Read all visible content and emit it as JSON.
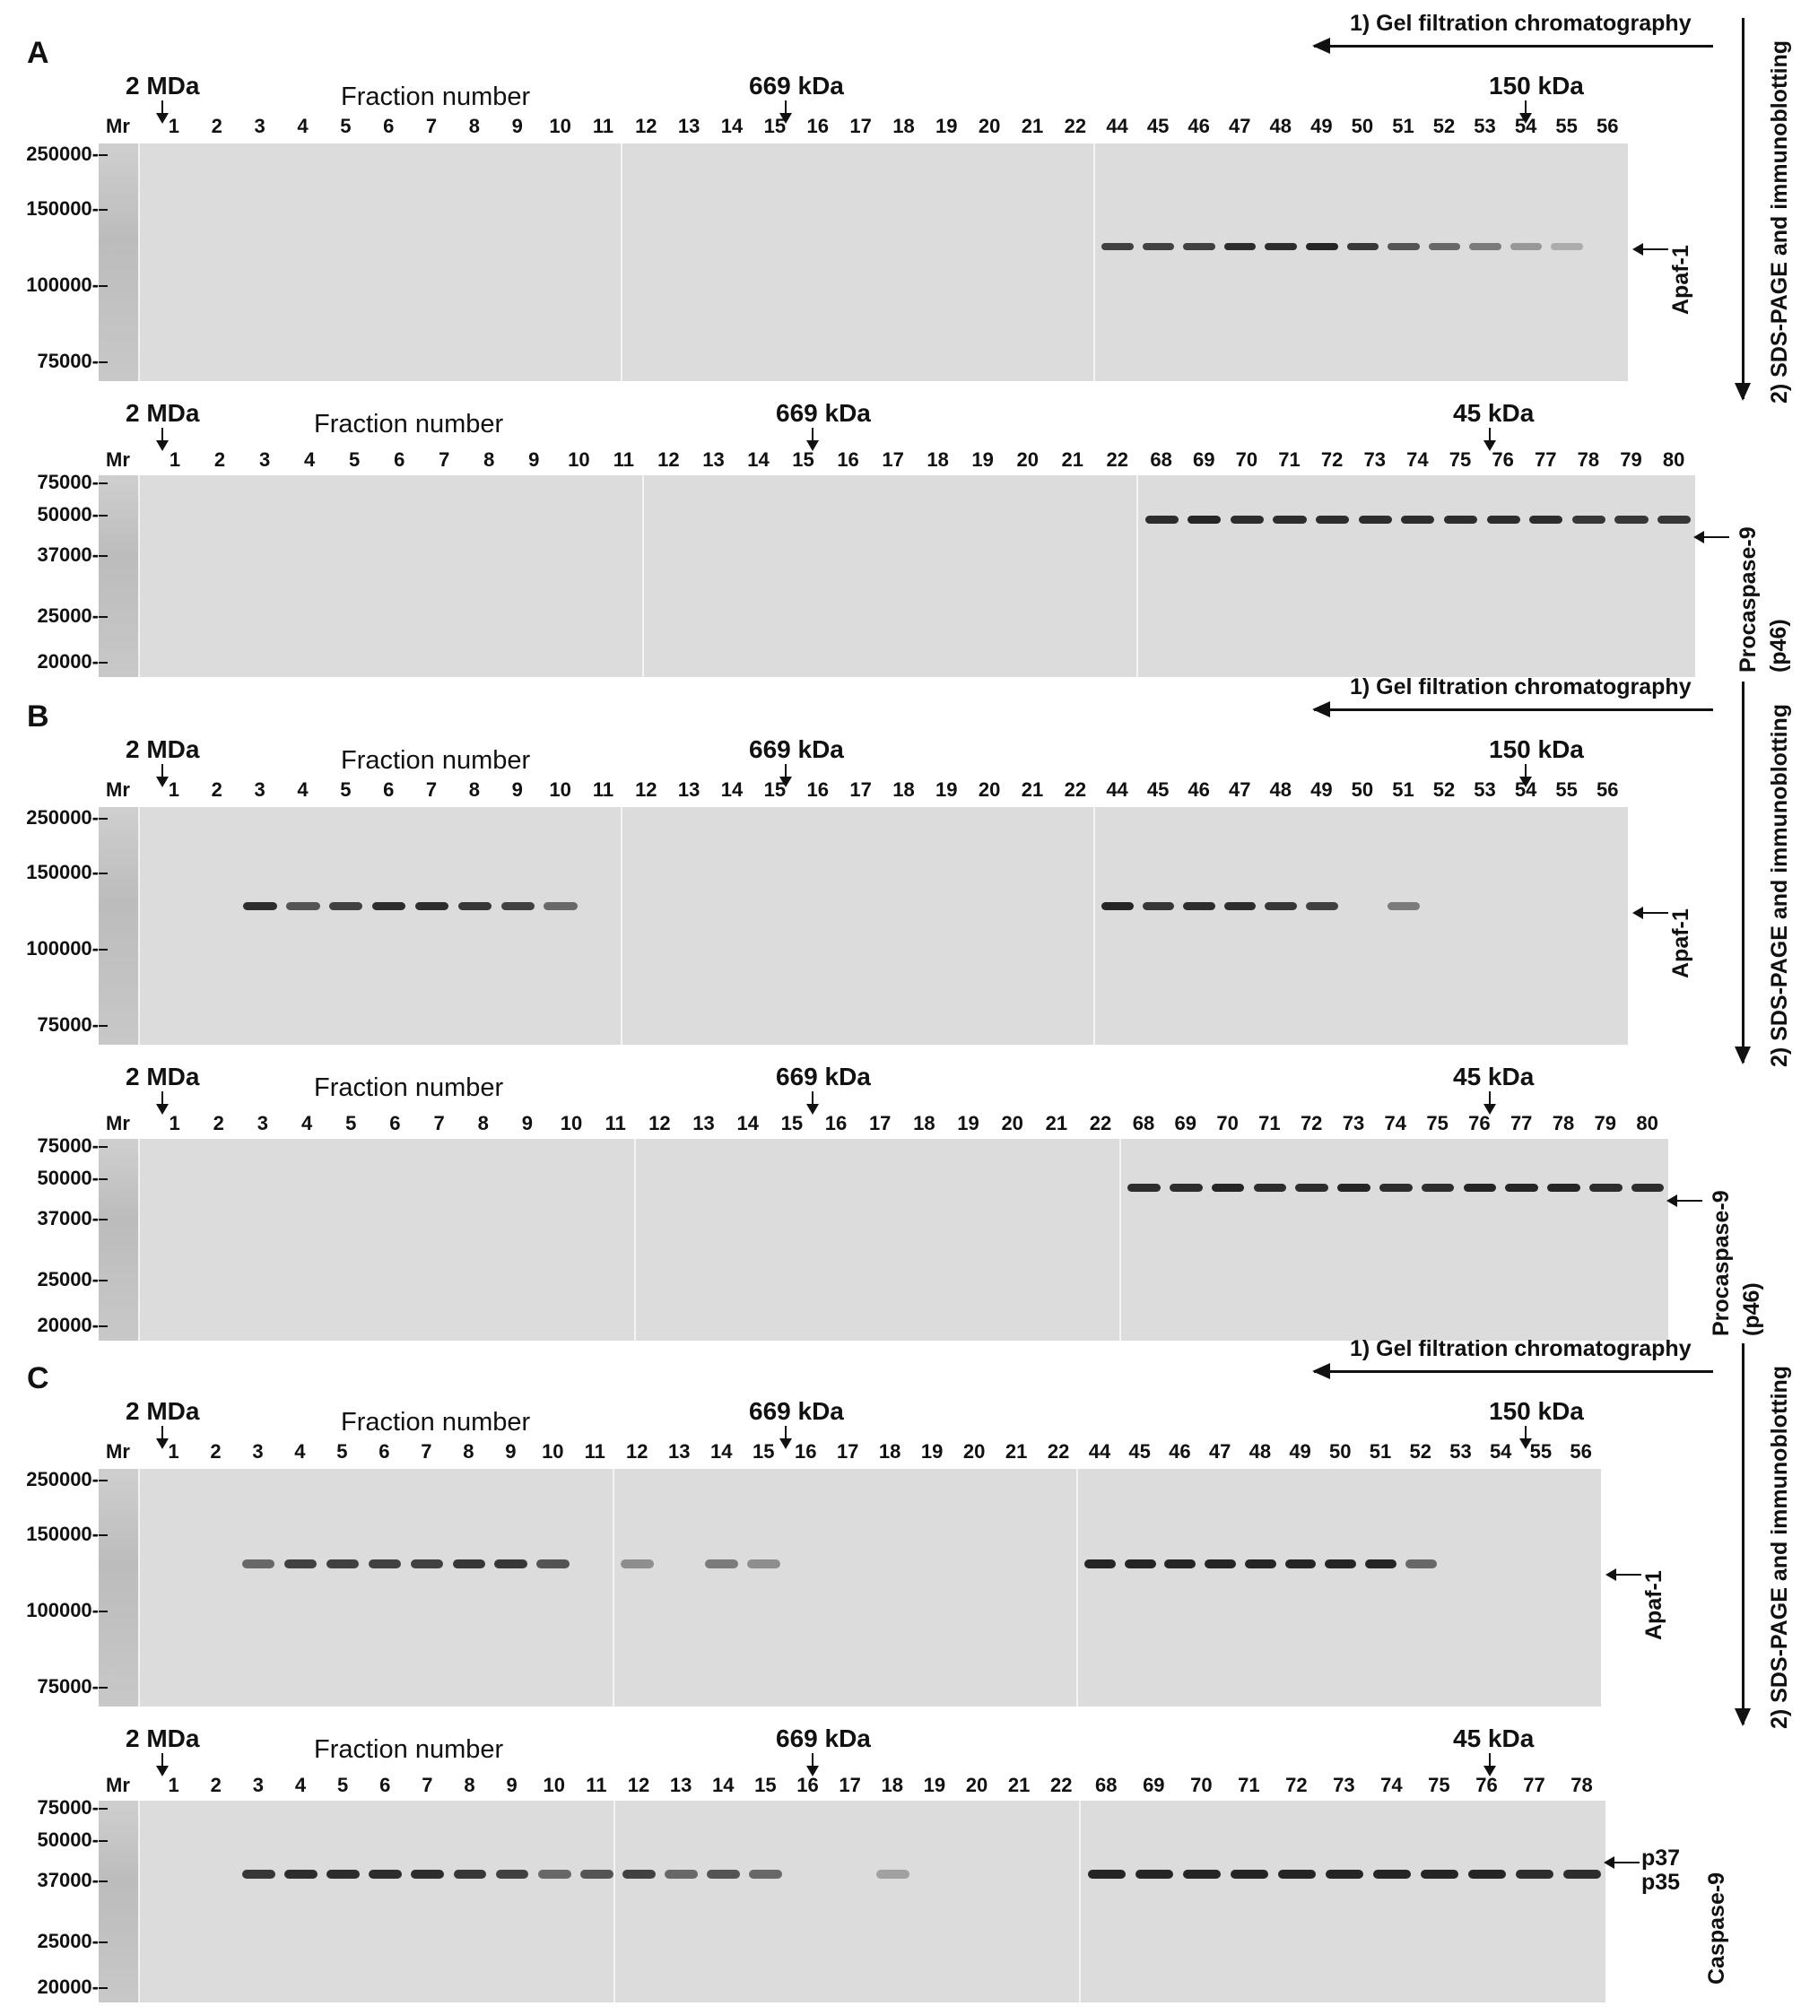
{
  "panels": [
    {
      "letter": "A",
      "flow_label": "1) Gel filtration chromatography",
      "vertical_label": "2) SDS-PAGE and immunoblotting",
      "blots": [
        {
          "mr": "Mr",
          "fraction_title": "Fraction number",
          "markers": [
            {
              "label": "2 MDa"
            },
            {
              "label": "669 kDa"
            },
            {
              "label": "150 kDa"
            }
          ],
          "lanes": [
            [
              "1",
              "2",
              "3",
              "4",
              "5",
              "6",
              "7",
              "8",
              "9",
              "10",
              "11"
            ],
            [
              "12",
              "13",
              "14",
              "15",
              "16",
              "17",
              "18",
              "19",
              "20",
              "21",
              "22"
            ],
            [
              "44",
              "45",
              "46",
              "47",
              "48",
              "49",
              "50",
              "51",
              "52",
              "53",
              "54",
              "55",
              "56"
            ]
          ],
          "ticks": [
            "250000-",
            "150000-",
            "100000-",
            "75000-"
          ],
          "target": [
            "Apaf-1"
          ]
        },
        {
          "mr": "Mr",
          "fraction_title": "Fraction number",
          "markers": [
            {
              "label": "2 MDa"
            },
            {
              "label": "669 kDa"
            },
            {
              "label": "45 kDa"
            }
          ],
          "lanes": [
            [
              "1",
              "2",
              "3",
              "4",
              "5",
              "6",
              "7",
              "8",
              "9",
              "10",
              "11"
            ],
            [
              "12",
              "13",
              "14",
              "15",
              "16",
              "17",
              "18",
              "19",
              "20",
              "21",
              "22"
            ],
            [
              "68",
              "69",
              "70",
              "71",
              "72",
              "73",
              "74",
              "75",
              "76",
              "77",
              "78",
              "79",
              "80"
            ]
          ],
          "ticks": [
            "75000-",
            "50000-",
            "37000-",
            "25000-",
            "20000-"
          ],
          "target": [
            "Procaspase-9",
            "(p46)"
          ]
        }
      ]
    },
    {
      "letter": "B",
      "flow_label": "1) Gel filtration chromatography",
      "vertical_label": "2) SDS-PAGE and immunoblotting",
      "blots": [
        {
          "mr": "Mr",
          "fraction_title": "Fraction number",
          "markers": [
            {
              "label": "2 MDa"
            },
            {
              "label": "669 kDa"
            },
            {
              "label": "150 kDa"
            }
          ],
          "lanes": [
            [
              "1",
              "2",
              "3",
              "4",
              "5",
              "6",
              "7",
              "8",
              "9",
              "10",
              "11"
            ],
            [
              "12",
              "13",
              "14",
              "15",
              "16",
              "17",
              "18",
              "19",
              "20",
              "21",
              "22"
            ],
            [
              "44",
              "45",
              "46",
              "47",
              "48",
              "49",
              "50",
              "51",
              "52",
              "53",
              "54",
              "55",
              "56"
            ]
          ],
          "ticks": [
            "250000-",
            "150000-",
            "100000-",
            "75000-"
          ],
          "target": [
            "Apaf-1"
          ]
        },
        {
          "mr": "Mr",
          "fraction_title": "Fraction number",
          "markers": [
            {
              "label": "2 MDa"
            },
            {
              "label": "669 kDa"
            },
            {
              "label": "45 kDa"
            }
          ],
          "lanes": [
            [
              "1",
              "2",
              "3",
              "4",
              "5",
              "6",
              "7",
              "8",
              "9",
              "10",
              "11"
            ],
            [
              "12",
              "13",
              "14",
              "15",
              "16",
              "17",
              "18",
              "19",
              "20",
              "21",
              "22"
            ],
            [
              "68",
              "69",
              "70",
              "71",
              "72",
              "73",
              "74",
              "75",
              "76",
              "77",
              "78",
              "79",
              "80"
            ]
          ],
          "ticks": [
            "75000-",
            "50000-",
            "37000-",
            "25000-",
            "20000-"
          ],
          "target": [
            "Procaspase-9",
            "(p46)"
          ]
        }
      ]
    },
    {
      "letter": "C",
      "flow_label": "1) Gel filtration chromatography",
      "vertical_label": "2) SDS-PAGE and immunoblotting",
      "blots": [
        {
          "mr": "Mr",
          "fraction_title": "Fraction number",
          "markers": [
            {
              "label": "2 MDa"
            },
            {
              "label": "669 kDa"
            },
            {
              "label": "150 kDa"
            }
          ],
          "lanes": [
            [
              "1",
              "2",
              "3",
              "4",
              "5",
              "6",
              "7",
              "8",
              "9",
              "10",
              "11"
            ],
            [
              "12",
              "13",
              "14",
              "15",
              "16",
              "17",
              "18",
              "19",
              "20",
              "21",
              "22"
            ],
            [
              "44",
              "45",
              "46",
              "47",
              "48",
              "49",
              "50",
              "51",
              "52",
              "53",
              "54",
              "55",
              "56"
            ]
          ],
          "ticks": [
            "250000-",
            "150000-",
            "100000-",
            "75000-"
          ],
          "target": [
            "Apaf-1"
          ]
        },
        {
          "mr": "Mr",
          "fraction_title": "Fraction number",
          "markers": [
            {
              "label": "2 MDa"
            },
            {
              "label": "669 kDa"
            },
            {
              "label": "45 kDa"
            }
          ],
          "lanes": [
            [
              "1",
              "2",
              "3",
              "4",
              "5",
              "6",
              "7",
              "8",
              "9",
              "10",
              "11"
            ],
            [
              "12",
              "13",
              "14",
              "15",
              "16",
              "17",
              "18",
              "19",
              "20",
              "21",
              "22"
            ],
            [
              "68",
              "69",
              "70",
              "71",
              "72",
              "73",
              "74",
              "75",
              "76",
              "77",
              "78"
            ]
          ],
          "ticks": [
            "75000-",
            "50000-",
            "37000-",
            "25000-",
            "20000-"
          ],
          "target": [
            "Caspase-9"
          ],
          "band_labels": [
            "p37",
            "p35"
          ]
        }
      ]
    }
  ]
}
